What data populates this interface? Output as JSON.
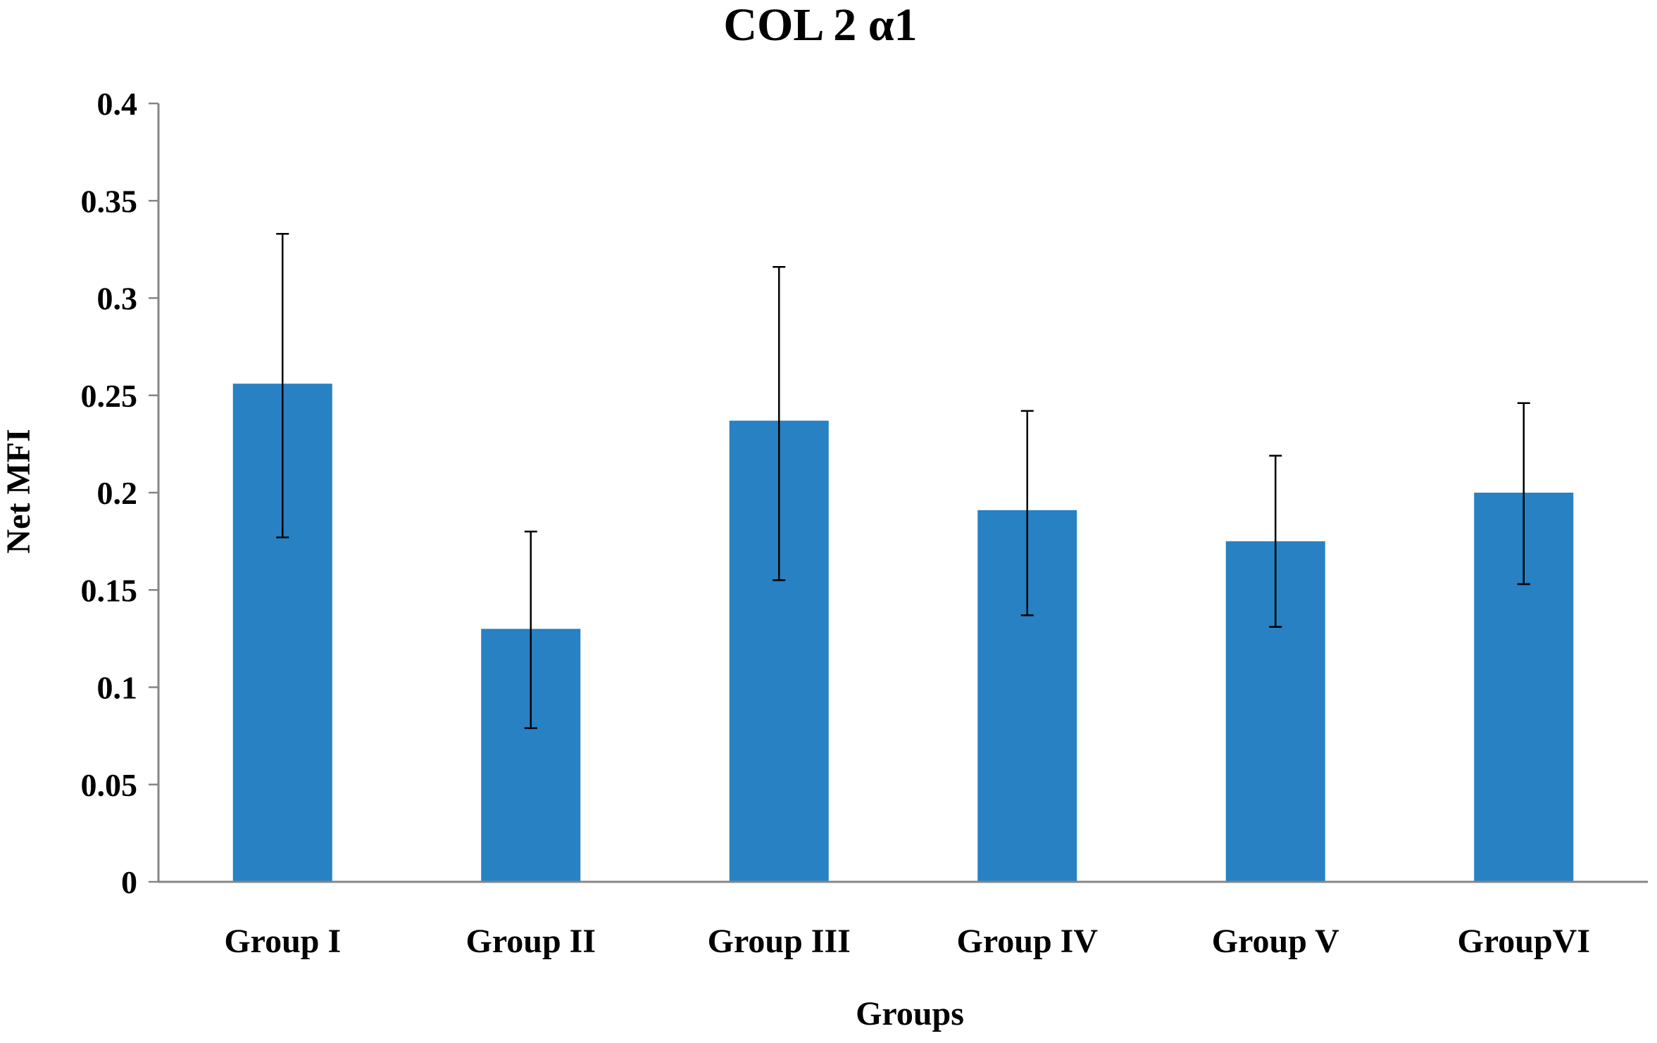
{
  "chart_data": {
    "type": "bar",
    "title": "COL 2 α1",
    "xlabel": "Groups",
    "ylabel": "Net MFI",
    "categories": [
      "Group I",
      "Group II",
      "Group III",
      "Group IV",
      "Group V",
      "GroupVI"
    ],
    "values": [
      0.256,
      0.13,
      0.237,
      0.191,
      0.175,
      0.2
    ],
    "error_upper": [
      0.333,
      0.18,
      0.316,
      0.242,
      0.219,
      0.246
    ],
    "error_lower": [
      0.177,
      0.079,
      0.155,
      0.137,
      0.131,
      0.153
    ],
    "ylim": [
      0,
      0.4
    ],
    "yticks": [
      0,
      0.05,
      0.1,
      0.15,
      0.2,
      0.25,
      0.3,
      0.35,
      0.4
    ],
    "ytick_labels": [
      "0",
      "0.05",
      "0.1",
      "0.15",
      "0.2",
      "0.25",
      "0.3",
      "0.35",
      "0.4"
    ],
    "grid": false,
    "legend": "none",
    "bar_color": "#2781c3",
    "axis_color": "#868686"
  }
}
